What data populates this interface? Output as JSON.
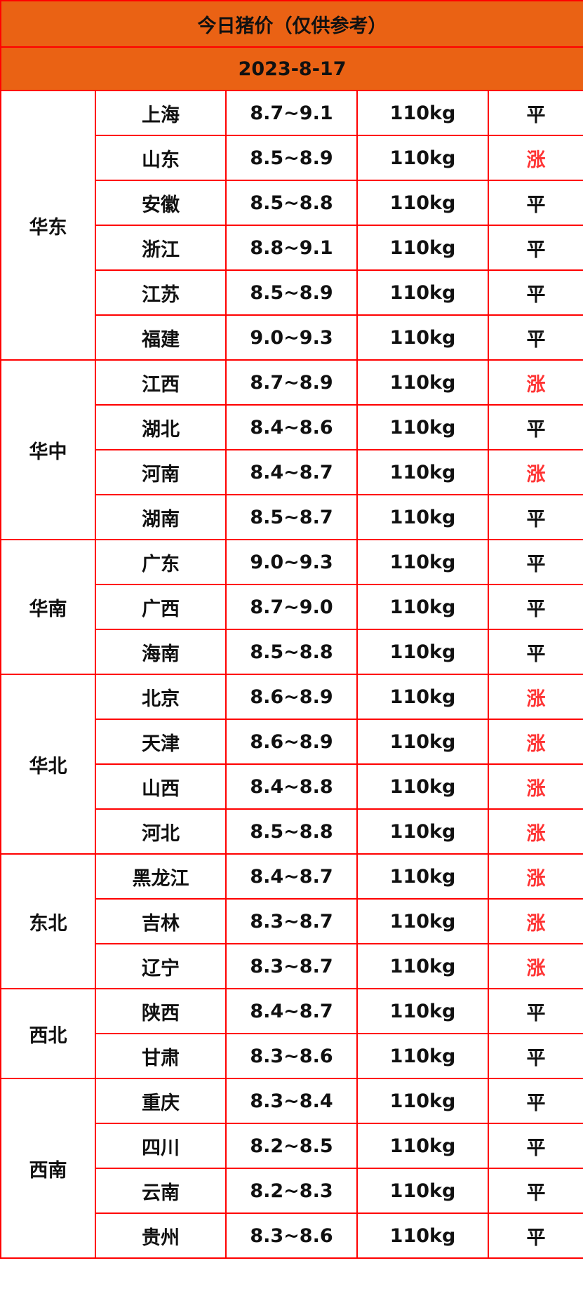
{
  "title": "今日猪价（仅供参考）",
  "date": "2023-8-17",
  "colors": {
    "header_bg": "#ea6214",
    "border": "#ff0000",
    "rise": "#ff3333"
  },
  "regions": [
    {
      "name": "华东",
      "rows": [
        {
          "province": "上海",
          "price": "8.7~9.1",
          "weight": "110kg",
          "trend": "平"
        },
        {
          "province": "山东",
          "price": "8.5~8.9",
          "weight": "110kg",
          "trend": "涨"
        },
        {
          "province": "安徽",
          "price": "8.5~8.8",
          "weight": "110kg",
          "trend": "平"
        },
        {
          "province": "浙江",
          "price": "8.8~9.1",
          "weight": "110kg",
          "trend": "平"
        },
        {
          "province": "江苏",
          "price": "8.5~8.9",
          "weight": "110kg",
          "trend": "平"
        },
        {
          "province": "福建",
          "price": "9.0~9.3",
          "weight": "110kg",
          "trend": "平"
        }
      ]
    },
    {
      "name": "华中",
      "rows": [
        {
          "province": "江西",
          "price": "8.7~8.9",
          "weight": "110kg",
          "trend": "涨"
        },
        {
          "province": "湖北",
          "price": "8.4~8.6",
          "weight": "110kg",
          "trend": "平"
        },
        {
          "province": "河南",
          "price": "8.4~8.7",
          "weight": "110kg",
          "trend": "涨"
        },
        {
          "province": "湖南",
          "price": "8.5~8.7",
          "weight": "110kg",
          "trend": "平"
        }
      ]
    },
    {
      "name": "华南",
      "rows": [
        {
          "province": "广东",
          "price": "9.0~9.3",
          "weight": "110kg",
          "trend": "平"
        },
        {
          "province": "广西",
          "price": "8.7~9.0",
          "weight": "110kg",
          "trend": "平"
        },
        {
          "province": "海南",
          "price": "8.5~8.8",
          "weight": "110kg",
          "trend": "平"
        }
      ]
    },
    {
      "name": "华北",
      "rows": [
        {
          "province": "北京",
          "price": "8.6~8.9",
          "weight": "110kg",
          "trend": "涨"
        },
        {
          "province": "天津",
          "price": "8.6~8.9",
          "weight": "110kg",
          "trend": "涨"
        },
        {
          "province": "山西",
          "price": "8.4~8.8",
          "weight": "110kg",
          "trend": "涨"
        },
        {
          "province": "河北",
          "price": "8.5~8.8",
          "weight": "110kg",
          "trend": "涨"
        }
      ]
    },
    {
      "name": "东北",
      "rows": [
        {
          "province": "黑龙江",
          "price": "8.4~8.7",
          "weight": "110kg",
          "trend": "涨"
        },
        {
          "province": "吉林",
          "price": "8.3~8.7",
          "weight": "110kg",
          "trend": "涨"
        },
        {
          "province": "辽宁",
          "price": "8.3~8.7",
          "weight": "110kg",
          "trend": "涨"
        }
      ]
    },
    {
      "name": "西北",
      "rows": [
        {
          "province": "陕西",
          "price": "8.4~8.7",
          "weight": "110kg",
          "trend": "平"
        },
        {
          "province": "甘肃",
          "price": "8.3~8.6",
          "weight": "110kg",
          "trend": "平"
        }
      ]
    },
    {
      "name": "西南",
      "rows": [
        {
          "province": "重庆",
          "price": "8.3~8.4",
          "weight": "110kg",
          "trend": "平"
        },
        {
          "province": "四川",
          "price": "8.2~8.5",
          "weight": "110kg",
          "trend": "平"
        },
        {
          "province": "云南",
          "price": "8.2~8.3",
          "weight": "110kg",
          "trend": "平"
        },
        {
          "province": "贵州",
          "price": "8.3~8.6",
          "weight": "110kg",
          "trend": "平"
        }
      ]
    }
  ]
}
